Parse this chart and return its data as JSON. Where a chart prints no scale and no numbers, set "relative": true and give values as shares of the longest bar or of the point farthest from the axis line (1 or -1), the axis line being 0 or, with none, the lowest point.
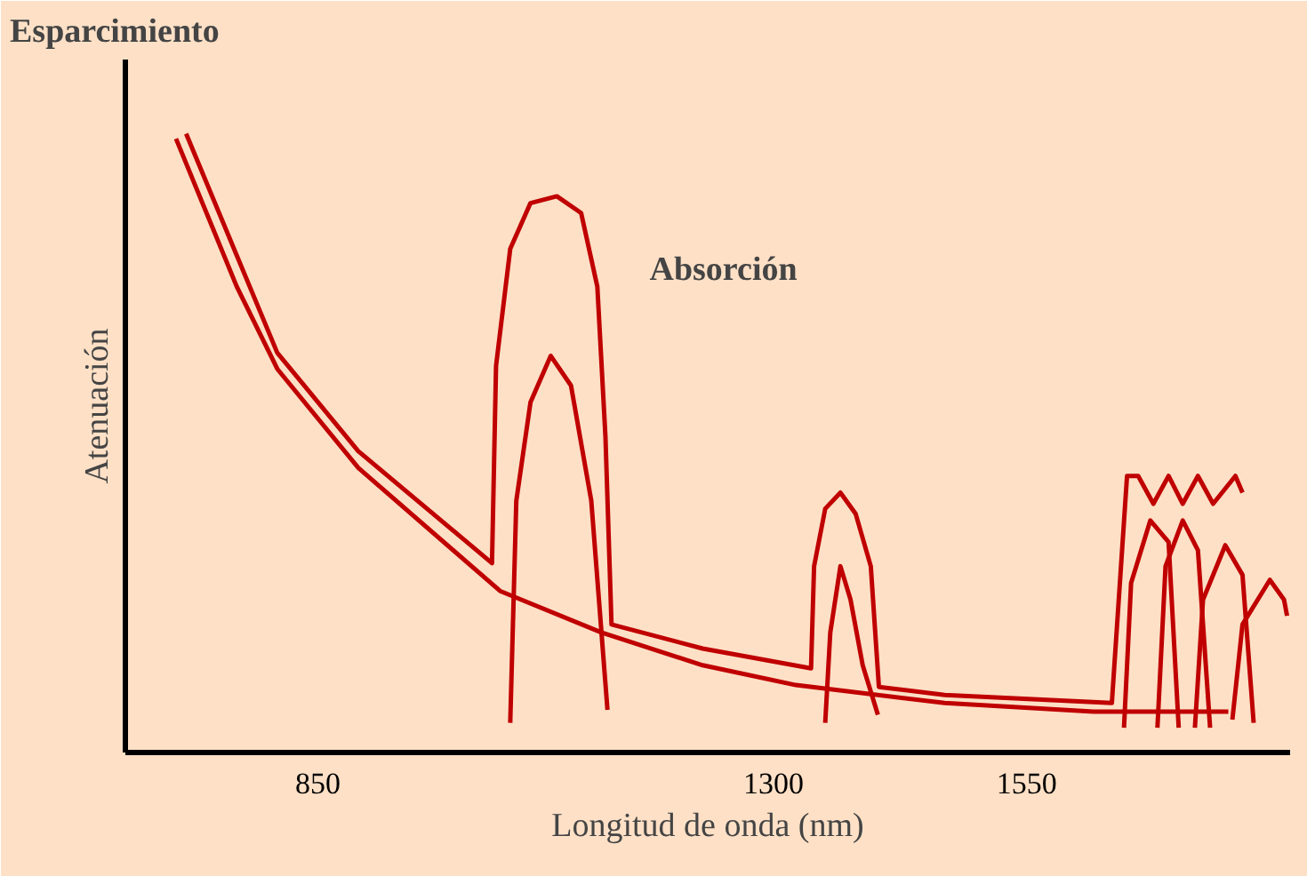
{
  "chart_data": {
    "type": "line",
    "relative": true,
    "xlabel": "Longitud de onda (nm)",
    "ylabel": "Atenuación",
    "annotations": [
      "Esparcimiento",
      "Absorción"
    ],
    "xlim": [
      660,
      1810
    ],
    "xticks": [
      850,
      1300,
      1550
    ],
    "grid": false,
    "line_style": "solid",
    "marker": "none",
    "series": [
      {
        "color": "#c00000",
        "x": [
          710,
          770,
          810,
          890,
          1030,
          1130,
          1230,
          1322,
          1469,
          1616,
          1749
        ],
        "values": [
          0.992,
          0.753,
          0.62,
          0.46,
          0.261,
          0.194,
          0.141,
          0.109,
          0.08,
          0.066,
          0.066
        ]
      },
      {
        "color": "#c00000",
        "x": [
          720,
          810,
          890,
          1022,
          1026,
          1040,
          1060,
          1086,
          1110,
          1126,
          1134,
          1140,
          1230,
          1337,
          1340,
          1351,
          1366,
          1381,
          1396,
          1404,
          1469,
          1634,
          1649,
          1660,
          1675,
          1690,
          1704,
          1719,
          1734,
          1756,
          1763
        ],
        "values": [
          1,
          0.646,
          0.487,
          0.306,
          0.625,
          0.814,
          0.888,
          0.899,
          0.872,
          0.753,
          0.511,
          0.207,
          0.168,
          0.136,
          0.301,
          0.394,
          0.42,
          0.386,
          0.301,
          0.106,
          0.093,
          0.08,
          0.447,
          0.447,
          0.402,
          0.447,
          0.402,
          0.447,
          0.402,
          0.447,
          0.42
        ]
      },
      {
        "color": "#c00000",
        "x": [
          1040,
          1046,
          1060,
          1080,
          1100,
          1120,
          1136
        ],
        "values": [
          0.048,
          0.407,
          0.566,
          0.641,
          0.593,
          0.407,
          0.069
        ]
      },
      {
        "color": "#c00000",
        "x": [
          1351,
          1356,
          1366,
          1376,
          1388,
          1403
        ],
        "values": [
          0.048,
          0.194,
          0.301,
          0.247,
          0.141,
          0.061
        ]
      },
      {
        "color": "#c00000",
        "x": [
          1646,
          1653,
          1672,
          1690,
          1700
        ],
        "values": [
          0.04,
          0.274,
          0.375,
          0.34,
          0.04
        ]
      },
      {
        "color": "#c00000",
        "x": [
          1679,
          1687,
          1704,
          1719,
          1731
        ],
        "values": [
          0.04,
          0.301,
          0.375,
          0.327,
          0.04
        ]
      },
      {
        "color": "#c00000",
        "x": [
          1716,
          1724,
          1746,
          1763,
          1774
        ],
        "values": [
          0.04,
          0.247,
          0.335,
          0.287,
          0.048
        ]
      },
      {
        "color": "#c00000",
        "x": [
          1753,
          1763,
          1790,
          1804,
          1807
        ],
        "values": [
          0.053,
          0.207,
          0.279,
          0.247,
          0.221
        ]
      }
    ]
  }
}
